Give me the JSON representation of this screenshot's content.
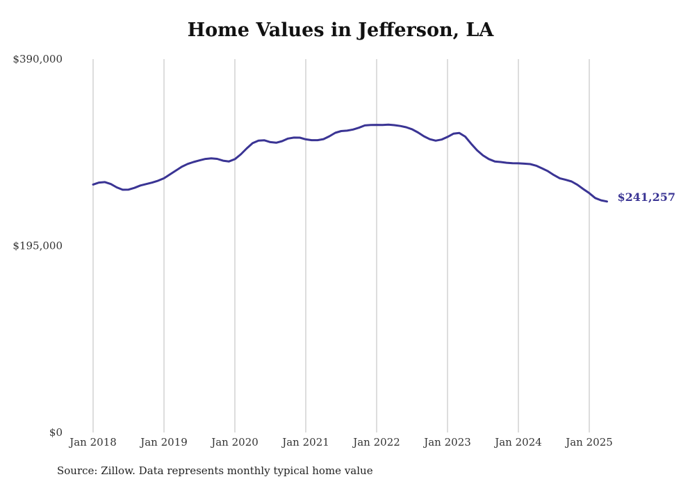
{
  "title": "Home Values in Jefferson, LA",
  "source": "Source: Zillow. Data represents monthly typical home value",
  "colors": {
    "line": "#3a3494",
    "grid": "#bbbbbb",
    "text": "#333333"
  },
  "chart_data": {
    "type": "line",
    "title": "Home Values in Jefferson, LA",
    "xlabel": "",
    "ylabel": "",
    "ylim": [
      0,
      390000
    ],
    "yticks": [
      0,
      195000,
      390000
    ],
    "ytick_labels": [
      "$0",
      "$195,000",
      "$390,000"
    ],
    "xticks": [
      "2018-01",
      "2019-01",
      "2020-01",
      "2021-01",
      "2022-01",
      "2023-01",
      "2024-01",
      "2025-01"
    ],
    "xtick_labels": [
      "Jan 2018",
      "Jan 2019",
      "Jan 2020",
      "Jan 2021",
      "Jan 2022",
      "Jan 2023",
      "Jan 2024",
      "Jan 2025"
    ],
    "grid": "vertical",
    "end_label": "$241,257",
    "series": [
      {
        "x": [
          "2018-01",
          "2018-02",
          "2018-03",
          "2018-04",
          "2018-05",
          "2018-06",
          "2018-07",
          "2018-08",
          "2018-09",
          "2018-10",
          "2018-11",
          "2018-12",
          "2019-01",
          "2019-02",
          "2019-03",
          "2019-04",
          "2019-05",
          "2019-06",
          "2019-07",
          "2019-08",
          "2019-09",
          "2019-10",
          "2019-11",
          "2019-12",
          "2020-01",
          "2020-02",
          "2020-03",
          "2020-04",
          "2020-05",
          "2020-06",
          "2020-07",
          "2020-08",
          "2020-09",
          "2020-10",
          "2020-11",
          "2020-12",
          "2021-01",
          "2021-02",
          "2021-03",
          "2021-04",
          "2021-05",
          "2021-06",
          "2021-07",
          "2021-08",
          "2021-09",
          "2021-10",
          "2021-11",
          "2021-12",
          "2022-01",
          "2022-02",
          "2022-03",
          "2022-04",
          "2022-05",
          "2022-06",
          "2022-07",
          "2022-08",
          "2022-09",
          "2022-10",
          "2022-11",
          "2022-12",
          "2023-01",
          "2023-02",
          "2023-03",
          "2023-04",
          "2023-05",
          "2023-06",
          "2023-07",
          "2023-08",
          "2023-09",
          "2023-10",
          "2023-11",
          "2023-12",
          "2024-01",
          "2024-02",
          "2024-03",
          "2024-04",
          "2024-05",
          "2024-06",
          "2024-07",
          "2024-08",
          "2024-09",
          "2024-10",
          "2024-11",
          "2024-12",
          "2025-01",
          "2025-02",
          "2025-03",
          "2025-04"
        ],
        "values": [
          259000,
          261000,
          261500,
          259500,
          256000,
          253500,
          253700,
          255500,
          258000,
          259500,
          261000,
          263000,
          265500,
          269500,
          273500,
          277500,
          280500,
          282500,
          284200,
          285700,
          286300,
          285800,
          283900,
          283100,
          285500,
          290500,
          296700,
          302200,
          304900,
          305200,
          303300,
          302600,
          304300,
          307000,
          308000,
          307900,
          306200,
          305300,
          305300,
          306400,
          309400,
          313000,
          314800,
          315300,
          316400,
          318300,
          320700,
          321200,
          321300,
          321200,
          321500,
          321000,
          320100,
          318800,
          316700,
          313400,
          309400,
          306300,
          304800,
          306000,
          308700,
          312100,
          312800,
          309000,
          301600,
          294800,
          289400,
          285600,
          283100,
          282500,
          281700,
          281200,
          281100,
          280800,
          280300,
          278700,
          275900,
          272900,
          268900,
          265500,
          263900,
          262200,
          258700,
          254200,
          250000,
          244900,
          242500,
          241257
        ]
      }
    ]
  }
}
